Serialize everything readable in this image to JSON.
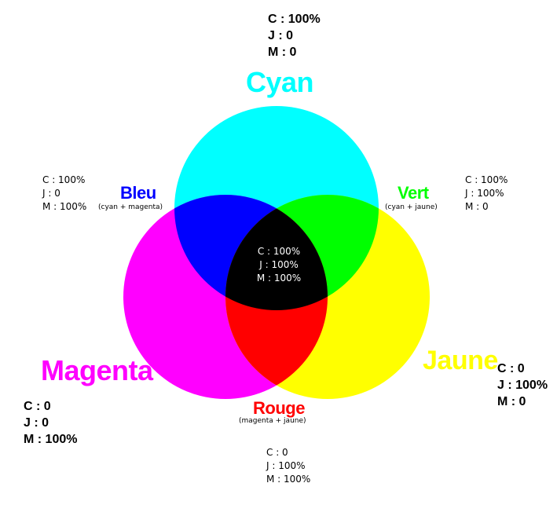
{
  "colors": {
    "cyan": "#00ffff",
    "magenta": "#ff00ff",
    "yellow": "#ffff00",
    "blue": "#0000ff",
    "green": "#00ff00",
    "red": "#ff0000",
    "black": "#000000"
  },
  "labels": {
    "cyan": "Cyan",
    "magenta": "Magenta",
    "jaune": "Jaune",
    "bleu": "Bleu",
    "bleu_sub": "(cyan + magenta)",
    "vert": "Vert",
    "vert_sub": "(cyan + jaune)",
    "rouge": "Rouge",
    "rouge_sub": "(magenta + jaune)"
  },
  "values": {
    "cyan": [
      "C : 100%",
      "J : 0",
      "M : 0"
    ],
    "magenta": [
      "C : 0",
      "J : 0",
      "M : 100%"
    ],
    "jaune": [
      "C : 0",
      "J : 100%",
      "M : 0"
    ],
    "bleu": [
      "C : 100%",
      "J : 0",
      "M : 100%"
    ],
    "vert": [
      "C : 100%",
      "J : 100%",
      "M : 0"
    ],
    "rouge": [
      "C : 0",
      "J : 100%",
      "M : 100%"
    ],
    "noir": [
      "C : 100%",
      "J : 100%",
      "M : 100%"
    ]
  }
}
